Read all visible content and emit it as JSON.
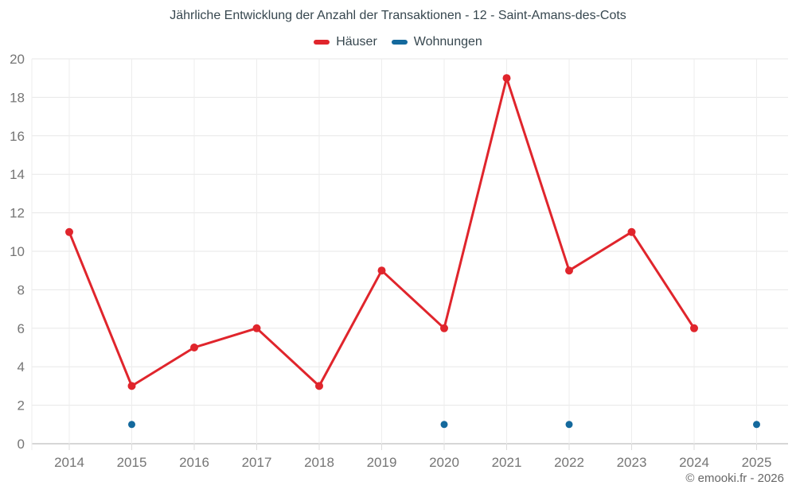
{
  "chart_data": {
    "type": "line",
    "title": "Jährliche Entwicklung der Anzahl der Transaktionen - 12 - Saint-Amans-des-Cots",
    "categories": [
      "2014",
      "2015",
      "2016",
      "2017",
      "2018",
      "2019",
      "2020",
      "2021",
      "2022",
      "2023",
      "2024",
      "2025"
    ],
    "series": [
      {
        "name": "Häuser",
        "color": "#e0252c",
        "marker_radius": 5,
        "values": [
          11,
          3,
          5,
          6,
          3,
          9,
          6,
          19,
          9,
          11,
          6,
          null
        ]
      },
      {
        "name": "Wohnungen",
        "color": "#14699d",
        "marker_radius": 4.5,
        "values": [
          null,
          1,
          null,
          null,
          null,
          null,
          1,
          null,
          1,
          null,
          null,
          1
        ]
      }
    ],
    "xlabel": "",
    "ylabel": "",
    "ylim": [
      0,
      20
    ],
    "y_tick_step": 2,
    "y_tick_labels": [
      "0",
      "2",
      "4",
      "6",
      "8",
      "10",
      "12",
      "14",
      "16",
      "18",
      "20"
    ],
    "grid": true,
    "legend_position": "top",
    "axis_label_color": "#757575",
    "grid_color_horizontal": "#e7e7e7",
    "grid_color_vertical": "#ededed",
    "axis_line_color": "#c9c9c9"
  },
  "footer": {
    "copyright": "© emooki.fr - 2026"
  }
}
